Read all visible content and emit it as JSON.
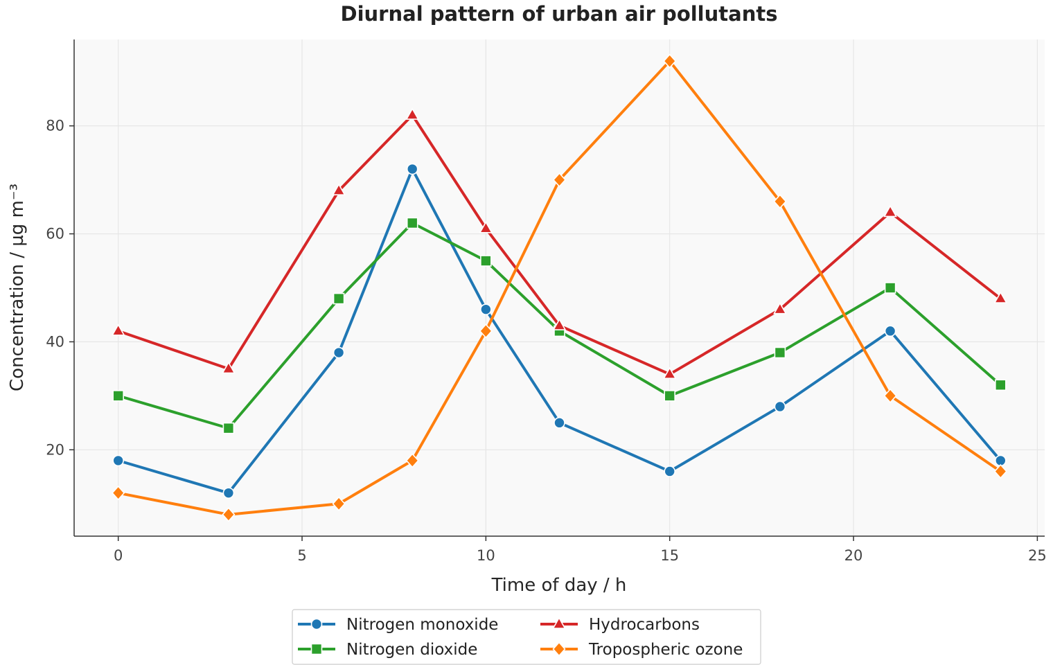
{
  "chart_data": {
    "type": "line",
    "title": "Diurnal pattern of urban air pollutants",
    "xlabel": "Time of day / h",
    "ylabel": "Concentration / µg m⁻³",
    "x": [
      0,
      3,
      6,
      8,
      10,
      12,
      15,
      18,
      21,
      24
    ],
    "xlim": [
      -1.2,
      25.2
    ],
    "ylim": [
      4,
      96
    ],
    "xticks": [
      0,
      5,
      10,
      15,
      20,
      25
    ],
    "yticks": [
      20,
      40,
      60,
      80
    ],
    "grid": true,
    "legend_position": "bottom-center",
    "series": [
      {
        "name": "Nitrogen monoxide",
        "color": "#1f77b4",
        "marker": "circle",
        "values": [
          18,
          12,
          38,
          72,
          46,
          25,
          16,
          28,
          42,
          18
        ]
      },
      {
        "name": "Nitrogen dioxide",
        "color": "#2ca02c",
        "marker": "square",
        "values": [
          30,
          24,
          48,
          62,
          55,
          42,
          30,
          38,
          50,
          32
        ]
      },
      {
        "name": "Hydrocarbons",
        "color": "#d62728",
        "marker": "triangle",
        "values": [
          42,
          35,
          68,
          82,
          61,
          43,
          34,
          46,
          64,
          48
        ]
      },
      {
        "name": "Tropospheric ozone",
        "color": "#ff7f0e",
        "marker": "diamond",
        "values": [
          12,
          8,
          10,
          18,
          42,
          70,
          92,
          66,
          30,
          16
        ]
      }
    ]
  }
}
